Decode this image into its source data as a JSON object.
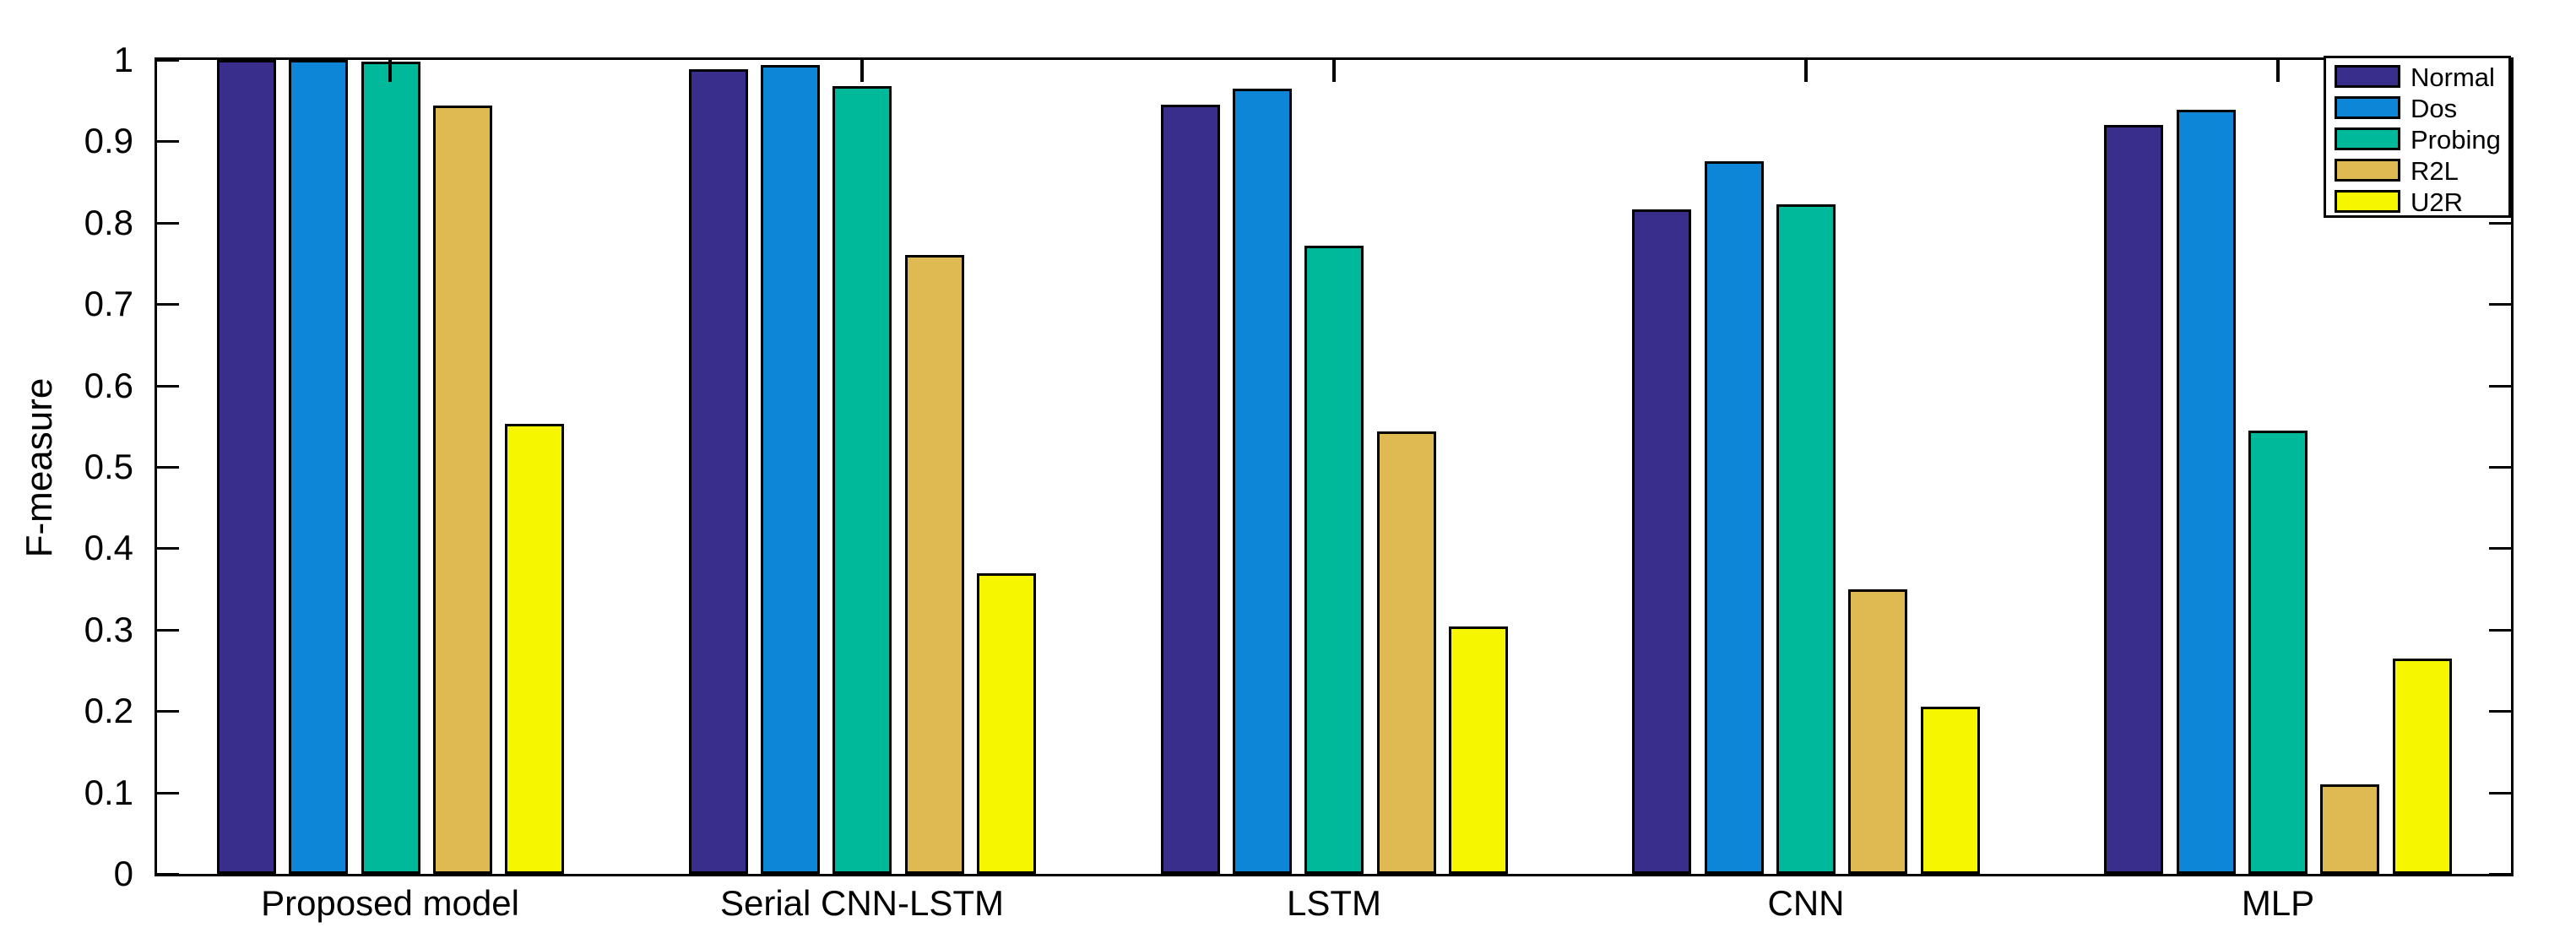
{
  "figure": {
    "background": "#ffffff",
    "axis_color": "#000000"
  },
  "chart_data": {
    "type": "bar",
    "title": "",
    "xlabel": "",
    "ylabel": "F-measure",
    "ylim": [
      0,
      1
    ],
    "grid": false,
    "legend_position": "top-right",
    "bar_edge_color": "#000000",
    "yticks": [
      0,
      0.1,
      0.2,
      0.3,
      0.4,
      0.5,
      0.6,
      0.7,
      0.8,
      0.9,
      1
    ],
    "ytick_labels": [
      "0",
      "0.1",
      "0.2",
      "0.3",
      "0.4",
      "0.5",
      "0.6",
      "0.7",
      "0.8",
      "0.9",
      "1"
    ],
    "categories": [
      "Proposed model",
      "Serial CNN-LSTM",
      "LSTM",
      "CNN",
      "MLP"
    ],
    "series": [
      {
        "name": "Normal",
        "color": "#3A2E8C",
        "values": [
          1.0,
          0.989,
          0.945,
          0.816,
          0.92
        ]
      },
      {
        "name": "Dos",
        "color": "#0D86D8",
        "values": [
          1.0,
          0.994,
          0.965,
          0.875,
          0.939
        ]
      },
      {
        "name": "Probing",
        "color": "#00B89A",
        "values": [
          0.998,
          0.968,
          0.772,
          0.823,
          0.545
        ]
      },
      {
        "name": "R2L",
        "color": "#DFB951",
        "values": [
          0.944,
          0.76,
          0.544,
          0.35,
          0.11
        ]
      },
      {
        "name": "U2R",
        "color": "#F6F600",
        "values": [
          0.553,
          0.369,
          0.304,
          0.205,
          0.265
        ]
      }
    ]
  }
}
